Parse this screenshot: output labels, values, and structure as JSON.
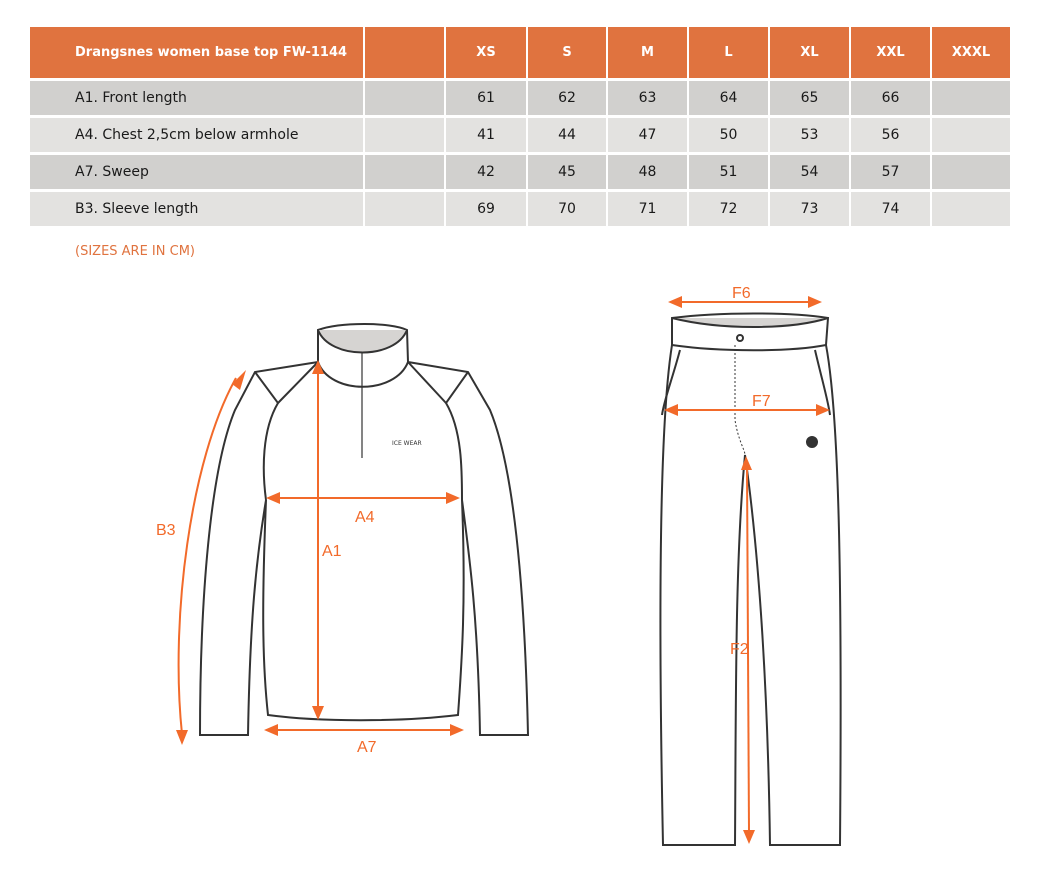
{
  "table": {
    "title": "Drangsnes women base top FW-1144",
    "sizes": [
      "XS",
      "S",
      "M",
      "L",
      "XL",
      "XXL",
      "XXXL"
    ],
    "rows": [
      {
        "label": "A1. Front length",
        "values": [
          "61",
          "62",
          "63",
          "64",
          "65",
          "66",
          ""
        ]
      },
      {
        "label": "A4. Chest 2,5cm below armhole",
        "values": [
          "41",
          "44",
          "47",
          "50",
          "53",
          "56",
          ""
        ]
      },
      {
        "label": "A7. Sweep",
        "values": [
          "42",
          "45",
          "48",
          "51",
          "54",
          "57",
          ""
        ]
      },
      {
        "label": "B3. Sleeve length",
        "values": [
          "69",
          "70",
          "71",
          "72",
          "73",
          "74",
          ""
        ]
      }
    ]
  },
  "note": "(SIZES ARE IN CM)",
  "top_diagram": {
    "labels": {
      "a1": "A1",
      "a4": "A4",
      "a7": "A7",
      "b3": "B3"
    },
    "logo": "ICE WEAR"
  },
  "pants_diagram": {
    "labels": {
      "f6": "F6",
      "f7": "F7",
      "f2": "F2"
    }
  },
  "colors": {
    "accent": "#e0733f",
    "arrow": "#f26a2a",
    "row_dark": "#d1d0ce",
    "row_light": "#e3e2e0"
  }
}
